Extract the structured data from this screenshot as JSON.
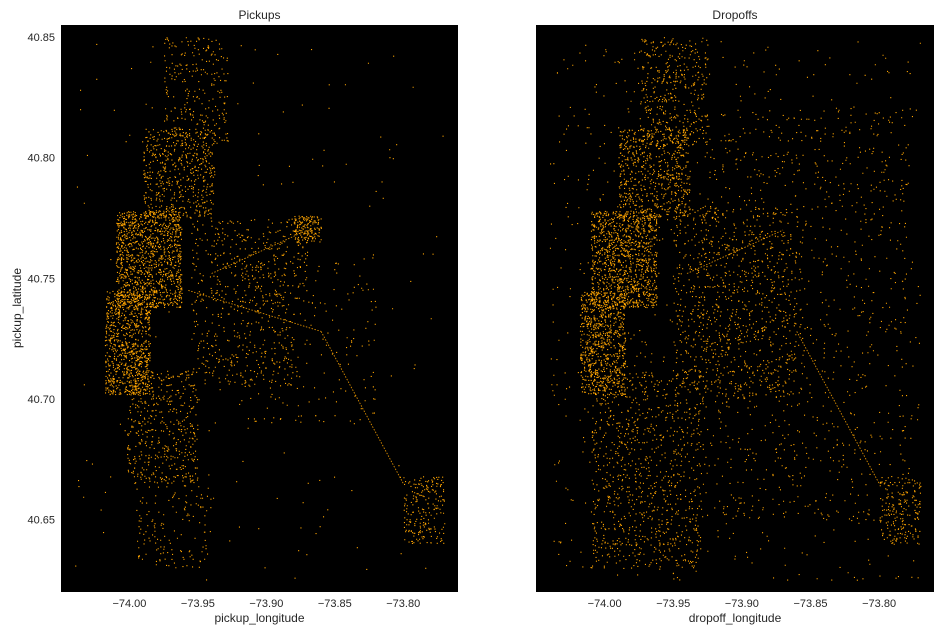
{
  "colors": {
    "background": "#000000",
    "points": "#ffa500",
    "text": "#262626",
    "figure": "#ffffff"
  },
  "chart_data": [
    {
      "type": "scatter",
      "title": "Pickups",
      "xlabel": "pickup_longitude",
      "ylabel": "pickup_latitude",
      "xlim": [
        -74.05,
        -73.76
      ],
      "ylim": [
        40.62,
        40.855
      ],
      "xticks": [
        -74.0,
        -73.95,
        -73.9,
        -73.85,
        -73.8
      ],
      "xtick_labels": [
        "−74.00",
        "−73.95",
        "−73.90",
        "−73.85",
        "−73.80"
      ],
      "yticks": [
        40.65,
        40.7,
        40.75,
        40.8,
        40.85
      ],
      "ytick_labels": [
        "40.65",
        "40.70",
        "40.75",
        "40.80",
        "40.85"
      ],
      "grid": false,
      "series": [
        {
          "color": "#ffa500",
          "density_regions": [
            {
              "lon": [
                -74.018,
                -73.985
              ],
              "lat": [
                40.702,
                40.745
              ],
              "share": 0.16
            },
            {
              "lon": [
                -74.01,
                -73.962
              ],
              "lat": [
                40.738,
                40.778
              ],
              "share": 0.22
            },
            {
              "lon": [
                -73.99,
                -73.938
              ],
              "lat": [
                40.775,
                40.812
              ],
              "share": 0.1
            },
            {
              "lon": [
                -73.975,
                -73.928
              ],
              "lat": [
                40.805,
                40.85
              ],
              "share": 0.05
            },
            {
              "lon": [
                -74.002,
                -73.95
              ],
              "lat": [
                40.665,
                40.712
              ],
              "share": 0.09
            },
            {
              "lon": [
                -73.995,
                -73.94
              ],
              "lat": [
                40.63,
                40.67
              ],
              "share": 0.03
            },
            {
              "lon": [
                -73.955,
                -73.88
              ],
              "lat": [
                40.705,
                40.745
              ],
              "share": 0.05
            },
            {
              "lon": [
                -73.955,
                -73.87
              ],
              "lat": [
                40.74,
                40.775
              ],
              "share": 0.06
            },
            {
              "lon": [
                -73.88,
                -73.86
              ],
              "lat": [
                40.765,
                40.776
              ],
              "share": 0.03
            },
            {
              "lon": [
                -73.92,
                -73.82
              ],
              "lat": [
                40.69,
                40.76
              ],
              "share": 0.04
            },
            {
              "lon": [
                -73.8,
                -73.77
              ],
              "lat": [
                40.64,
                40.668
              ],
              "share": 0.04
            },
            {
              "lon": [
                -74.04,
                -73.77
              ],
              "lat": [
                40.625,
                40.85
              ],
              "share": 0.03
            }
          ],
          "lines": [
            {
              "from": [
                -73.957,
                40.745
              ],
              "to": [
                -73.86,
                40.728
              ]
            },
            {
              "from": [
                -73.86,
                40.728
              ],
              "to": [
                -73.8,
                40.665
              ]
            },
            {
              "from": [
                -73.94,
                40.752
              ],
              "to": [
                -73.87,
                40.77
              ]
            }
          ]
        }
      ]
    },
    {
      "type": "scatter",
      "title": "Dropoffs",
      "xlabel": "dropoff_longitude",
      "ylabel": "",
      "xlim": [
        -74.05,
        -73.76
      ],
      "ylim": [
        40.62,
        40.855
      ],
      "xticks": [
        -74.0,
        -73.95,
        -73.9,
        -73.85,
        -73.8
      ],
      "xtick_labels": [
        "−74.00",
        "−73.95",
        "−73.90",
        "−73.85",
        "−73.80"
      ],
      "yticks": [],
      "ytick_labels": [],
      "grid": false,
      "series": [
        {
          "color": "#ffa500",
          "density_regions": [
            {
              "lon": [
                -74.018,
                -73.985
              ],
              "lat": [
                40.702,
                40.745
              ],
              "share": 0.12
            },
            {
              "lon": [
                -74.01,
                -73.962
              ],
              "lat": [
                40.738,
                40.778
              ],
              "share": 0.17
            },
            {
              "lon": [
                -73.99,
                -73.938
              ],
              "lat": [
                40.775,
                40.812
              ],
              "share": 0.1
            },
            {
              "lon": [
                -73.975,
                -73.925
              ],
              "lat": [
                40.805,
                40.85
              ],
              "share": 0.06
            },
            {
              "lon": [
                -74.01,
                -73.93
              ],
              "lat": [
                40.63,
                40.712
              ],
              "share": 0.14
            },
            {
              "lon": [
                -73.95,
                -73.86
              ],
              "lat": [
                40.7,
                40.78
              ],
              "share": 0.12
            },
            {
              "lon": [
                -73.93,
                -73.78
              ],
              "lat": [
                40.65,
                40.82
              ],
              "share": 0.12
            },
            {
              "lon": [
                -73.8,
                -73.77
              ],
              "lat": [
                40.64,
                40.668
              ],
              "share": 0.03
            },
            {
              "lon": [
                -74.04,
                -73.77
              ],
              "lat": [
                40.625,
                40.85
              ],
              "share": 0.14
            }
          ],
          "lines": [
            {
              "from": [
                -73.94,
                40.752
              ],
              "to": [
                -73.87,
                40.77
              ]
            },
            {
              "from": [
                -73.86,
                40.728
              ],
              "to": [
                -73.8,
                40.665
              ]
            }
          ]
        }
      ]
    }
  ]
}
